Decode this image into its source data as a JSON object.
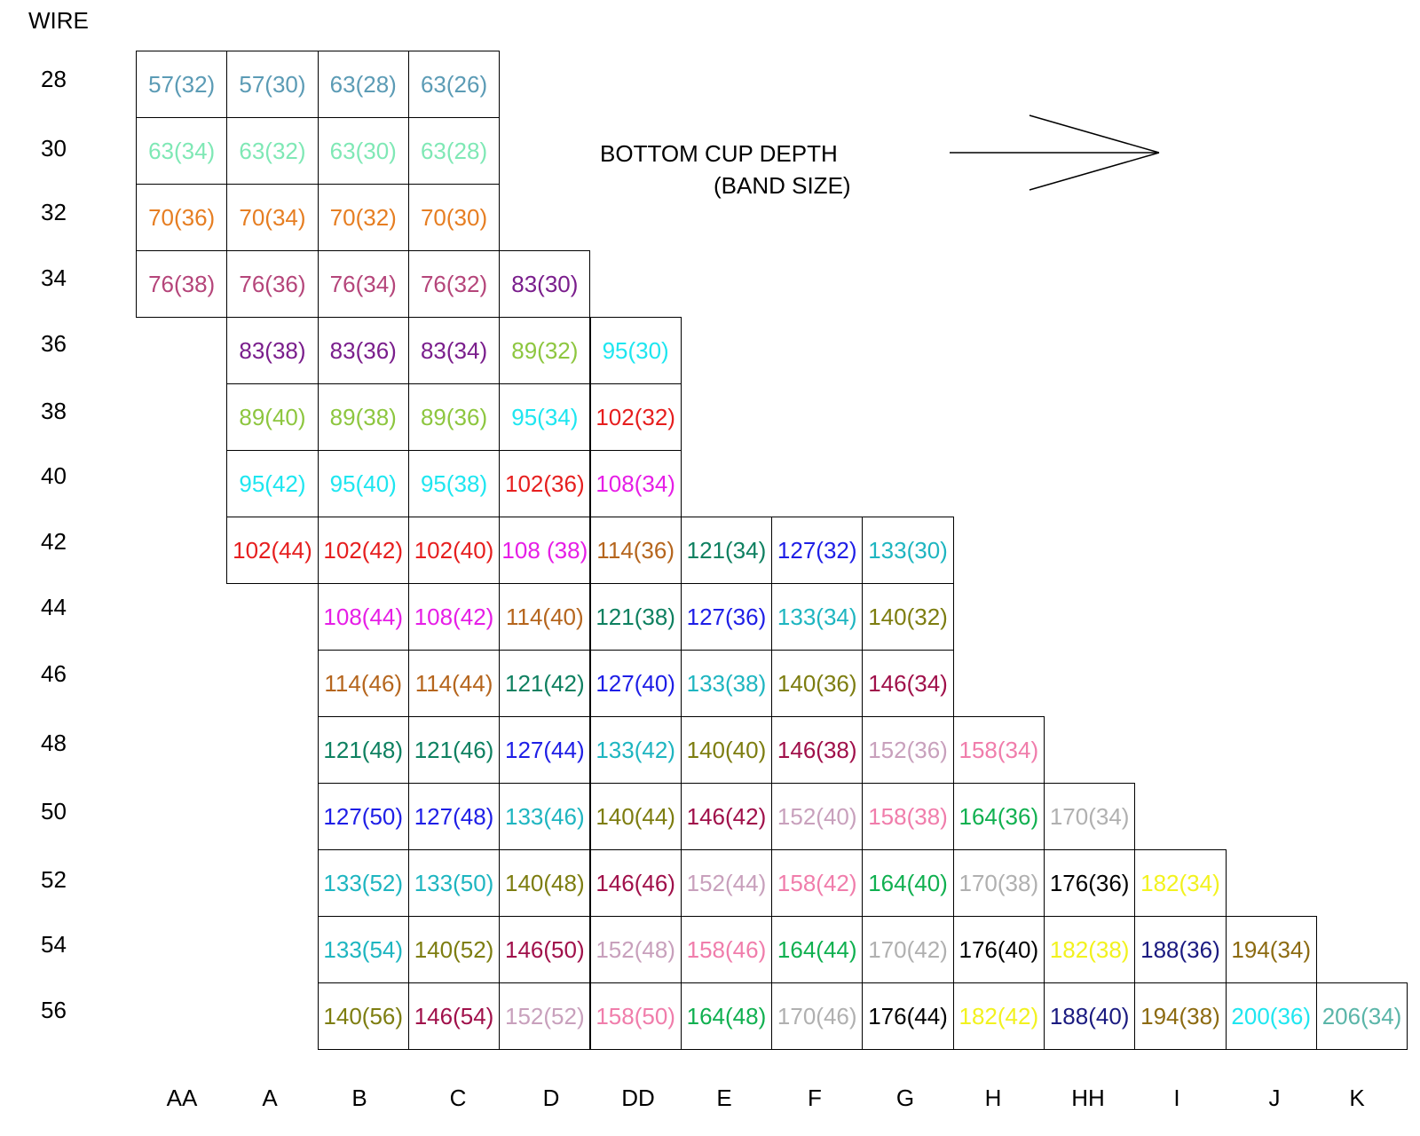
{
  "wire_label": "WIRE",
  "direction": {
    "title": "BOTTOM CUP DEPTH",
    "subtitle": "(BAND SIZE)"
  },
  "wires": [
    "28",
    "30",
    "32",
    "34",
    "36",
    "38",
    "40",
    "42",
    "44",
    "46",
    "48",
    "50",
    "52",
    "54",
    "56"
  ],
  "cups": [
    "AA",
    "A",
    "B",
    "C",
    "D",
    "DD",
    "E",
    "F",
    "G",
    "H",
    "HH",
    "I",
    "J",
    "K"
  ],
  "colors": {
    "57": "#5b9bb5",
    "63_28": "#5b9bb5",
    "63": "#7fe8b5",
    "70": "#e67e22",
    "76": "#b5457a",
    "83": "#7a1e8c",
    "89": "#8dc63f",
    "95": "#1ee6f0",
    "102": "#e61e1e",
    "108": "#e61ee6",
    "114": "#b5651d",
    "121": "#0e8060",
    "127": "#1e1ee6",
    "133": "#1eb5c0",
    "140": "#7d7d10",
    "146": "#a0104a",
    "152": "#c8a0bc",
    "158": "#f07dab",
    "164": "#10b050",
    "170": "#b0b0b0",
    "176": "#000000",
    "182": "#f2f21e",
    "188": "#1a1a80",
    "194": "#8c6a10",
    "200": "#1ee6f0",
    "206": "#5ab5a8"
  },
  "rows": [
    {
      "wire": "28",
      "start": 0,
      "cells": [
        "57(32)",
        "57(30)",
        "63(28)",
        "63(26)"
      ],
      "colors": [
        "57",
        "57",
        "63_28",
        "63_28"
      ]
    },
    {
      "wire": "30",
      "start": 0,
      "cells": [
        "63(34)",
        "63(32)",
        "63(30)",
        "63(28)"
      ],
      "colors": [
        "63",
        "63",
        "63",
        "63"
      ]
    },
    {
      "wire": "32",
      "start": 0,
      "cells": [
        "70(36)",
        "70(34)",
        "70(32)",
        "70(30)"
      ],
      "colors": [
        "70",
        "70",
        "70",
        "70"
      ]
    },
    {
      "wire": "34",
      "start": 0,
      "cells": [
        "76(38)",
        "76(36)",
        "76(34)",
        "76(32)",
        "83(30)"
      ],
      "colors": [
        "76",
        "76",
        "76",
        "76",
        "83"
      ]
    },
    {
      "wire": "36",
      "start": 1,
      "cells": [
        "83(38)",
        "83(36)",
        "83(34)",
        "89(32)",
        "95(30)"
      ],
      "colors": [
        "83",
        "83",
        "83",
        "89",
        "95"
      ]
    },
    {
      "wire": "38",
      "start": 1,
      "cells": [
        "89(40)",
        "89(38)",
        "89(36)",
        "95(34)",
        "102(32)"
      ],
      "colors": [
        "89",
        "89",
        "89",
        "95",
        "102"
      ]
    },
    {
      "wire": "40",
      "start": 1,
      "cells": [
        "95(42)",
        "95(40)",
        "95(38)",
        "102(36)",
        "108(34)"
      ],
      "colors": [
        "95",
        "95",
        "95",
        "102",
        "108"
      ]
    },
    {
      "wire": "42",
      "start": 1,
      "cells": [
        "102(44)",
        "102(42)",
        "102(40)",
        "108 (38)",
        "114(36)",
        "121(34)",
        "127(32)",
        "133(30)"
      ],
      "colors": [
        "102",
        "102",
        "102",
        "108",
        "114",
        "121",
        "127",
        "133"
      ]
    },
    {
      "wire": "44",
      "start": 2,
      "cells": [
        "108(44)",
        "108(42)",
        "114(40)",
        "121(38)",
        "127(36)",
        "133(34)",
        "140(32)"
      ],
      "colors": [
        "108",
        "108",
        "114",
        "121",
        "127",
        "133",
        "140"
      ]
    },
    {
      "wire": "46",
      "start": 2,
      "cells": [
        "114(46)",
        "114(44)",
        "121(42)",
        "127(40)",
        "133(38)",
        "140(36)",
        "146(34)"
      ],
      "colors": [
        "114",
        "114",
        "121",
        "127",
        "133",
        "140",
        "146"
      ]
    },
    {
      "wire": "48",
      "start": 2,
      "cells": [
        "121(48)",
        "121(46)",
        "127(44)",
        "133(42)",
        "140(40)",
        "146(38)",
        "152(36)",
        "158(34)"
      ],
      "colors": [
        "121",
        "121",
        "127",
        "133",
        "140",
        "146",
        "152",
        "158"
      ]
    },
    {
      "wire": "50",
      "start": 2,
      "cells": [
        "127(50)",
        "127(48)",
        "133(46)",
        "140(44)",
        "146(42)",
        "152(40)",
        "158(38)",
        "164(36)",
        "170(34)"
      ],
      "colors": [
        "127",
        "127",
        "133",
        "140",
        "146",
        "152",
        "158",
        "164",
        "170"
      ]
    },
    {
      "wire": "52",
      "start": 2,
      "cells": [
        "133(52)",
        "133(50)",
        "140(48)",
        "146(46)",
        "152(44)",
        "158(42)",
        "164(40)",
        "170(38)",
        "176(36)",
        "182(34)"
      ],
      "colors": [
        "133",
        "133",
        "140",
        "146",
        "152",
        "158",
        "164",
        "170",
        "176",
        "182"
      ]
    },
    {
      "wire": "54",
      "start": 2,
      "cells": [
        "133(54)",
        "140(52)",
        "146(50)",
        "152(48)",
        "158(46)",
        "164(44)",
        "170(42)",
        "176(40)",
        "182(38)",
        "188(36)",
        "194(34)"
      ],
      "colors": [
        "133",
        "140",
        "146",
        "152",
        "158",
        "164",
        "170",
        "176",
        "182",
        "188",
        "194"
      ]
    },
    {
      "wire": "56",
      "start": 2,
      "cells": [
        "140(56)",
        "146(54)",
        "152(52)",
        "158(50)",
        "164(48)",
        "170(46)",
        "176(44)",
        "182(42)",
        "188(40)",
        "194(38)",
        "200(36)",
        "206(34)"
      ],
      "colors": [
        "140",
        "146",
        "152",
        "158",
        "164",
        "170",
        "176",
        "182",
        "188",
        "194",
        "200",
        "206"
      ]
    }
  ]
}
